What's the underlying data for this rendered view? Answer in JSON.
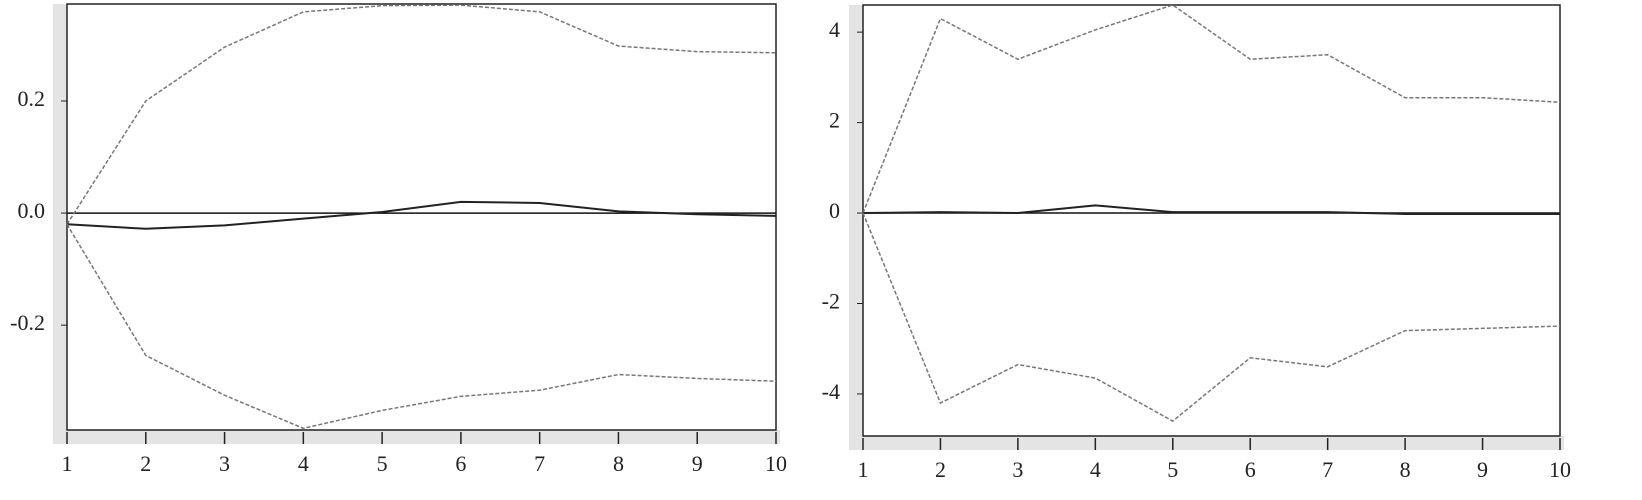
{
  "chart_data": [
    {
      "type": "line",
      "x": [
        1,
        2,
        3,
        4,
        5,
        6,
        7,
        8,
        9,
        10
      ],
      "xlim": [
        1,
        10
      ],
      "xticks": [
        1,
        2,
        3,
        4,
        5,
        6,
        7,
        8,
        9,
        10
      ],
      "ylim": [
        -0.387,
        0.373
      ],
      "yticks": [
        -0.2,
        {
          "value": 0,
          "label": "0.0"
        },
        0.2
      ],
      "zero_line": true,
      "series": [
        {
          "color": "#777777",
          "style": "dashed",
          "values": [
            -0.02,
            0.2,
            0.296,
            0.359,
            0.37,
            0.371,
            0.359,
            0.298,
            0.288,
            0.286
          ]
        },
        {
          "color": "#222222",
          "style": "solid",
          "values": [
            -0.02,
            -0.028,
            -0.022,
            -0.01,
            0.002,
            0.02,
            0.018,
            0.003,
            -0.002,
            -0.005
          ]
        },
        {
          "color": "#777777",
          "style": "dashed",
          "values": [
            -0.02,
            -0.254,
            -0.325,
            -0.384,
            -0.352,
            -0.327,
            -0.316,
            -0.288,
            -0.295,
            -0.3
          ]
        }
      ]
    },
    {
      "type": "line",
      "x": [
        1,
        2,
        3,
        4,
        5,
        6,
        7,
        8,
        9,
        10
      ],
      "xlim": [
        1,
        10
      ],
      "xticks": [
        1,
        2,
        3,
        4,
        5,
        6,
        7,
        8,
        9,
        10
      ],
      "ylim": [
        -4.93,
        4.6
      ],
      "yticks": [
        -4,
        -2,
        0,
        2,
        4
      ],
      "zero_line": true,
      "series": [
        {
          "color": "#777777",
          "style": "dashed",
          "values": [
            0,
            4.3,
            3.4,
            4.05,
            4.6,
            3.4,
            3.5,
            2.55,
            2.55,
            2.45
          ]
        },
        {
          "color": "#222222",
          "style": "solid",
          "values": [
            0,
            0.02,
            0,
            0.17,
            0.02,
            0.02,
            0.02,
            -0.02,
            -0.02,
            -0.02
          ]
        },
        {
          "color": "#777777",
          "style": "dashed",
          "values": [
            0,
            -4.2,
            -3.35,
            -3.65,
            -4.6,
            -3.2,
            -3.4,
            -2.6,
            -2.55,
            -2.5
          ]
        }
      ]
    }
  ]
}
